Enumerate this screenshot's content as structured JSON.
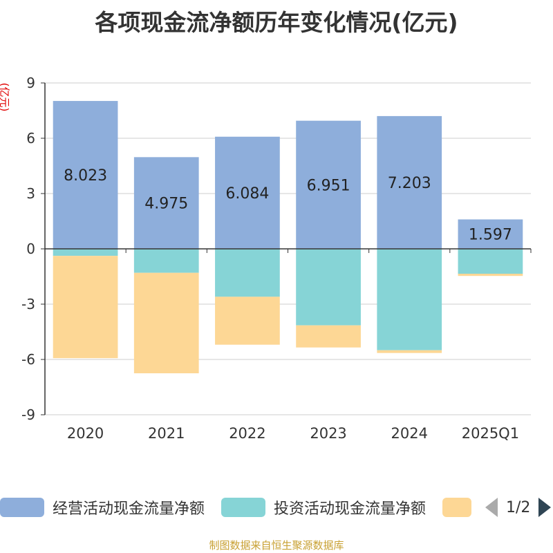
{
  "title": "各项现金流净额历年变化情况(亿元)",
  "unit_label": "(亿元)",
  "footer": "制图数据来自恒生聚源数据库",
  "legend": {
    "items": [
      {
        "label": "经营活动现金流量净额",
        "color": "#8eaedb"
      },
      {
        "label": "投资活动现金流量净额",
        "color": "#86d4d6"
      },
      {
        "label": "",
        "color": "#fdd795"
      }
    ],
    "page": "1/2"
  },
  "chart_data": {
    "type": "bar",
    "stacked": true,
    "categories": [
      "2020",
      "2021",
      "2022",
      "2023",
      "2024",
      "2025Q1"
    ],
    "ylim": [
      -9,
      9
    ],
    "yticks": [
      9,
      6,
      3,
      0,
      -3,
      -6,
      -9
    ],
    "series": [
      {
        "name": "经营活动现金流量净额",
        "color": "#8eaedb",
        "values": [
          8.023,
          4.975,
          6.084,
          6.951,
          7.203,
          1.597
        ],
        "labels": [
          "8.023",
          "4.975",
          "6.084",
          "6.951",
          "7.203",
          "1.597"
        ]
      },
      {
        "name": "投资活动现金流量净额",
        "color": "#86d4d6",
        "values": [
          -0.38,
          -1.3,
          -2.6,
          -4.15,
          -5.5,
          -1.35
        ]
      },
      {
        "name": "",
        "color": "#fdd795",
        "values": [
          -5.55,
          -5.45,
          -2.6,
          -1.2,
          -0.15,
          -0.12
        ]
      }
    ]
  }
}
